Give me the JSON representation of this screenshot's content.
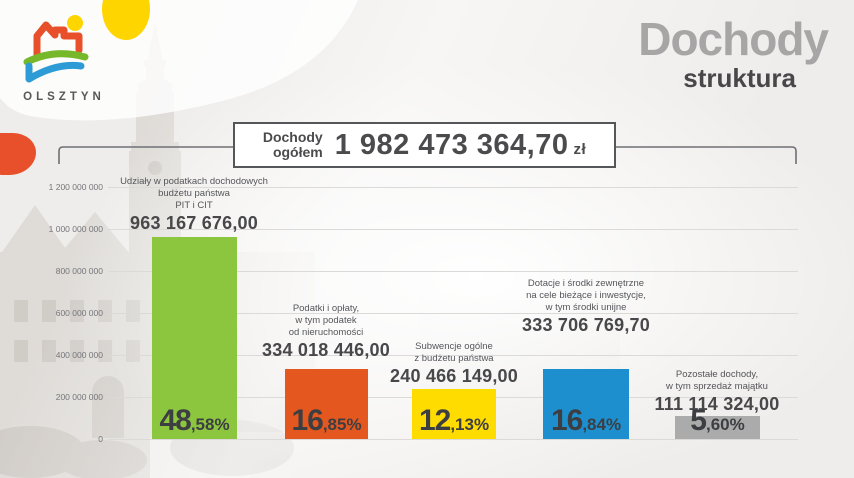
{
  "logo": {
    "city_name": "OLSZTYN"
  },
  "header": {
    "title": "Dochody",
    "subtitle": "struktura"
  },
  "total_box": {
    "label_line1": "Dochody",
    "label_line2": "ogółem",
    "amount": "1 982 473 364,70",
    "currency": "zł"
  },
  "decor_colors": {
    "yellow_blob": "#FFD500",
    "orange_blob": "#E8502B"
  },
  "chart_data": {
    "type": "bar",
    "title": "Dochody — struktura",
    "xlabel": "",
    "ylabel": "",
    "ylim": [
      0,
      1200000000
    ],
    "grid": true,
    "y_tick_labels": [
      "1 200 000 000",
      "1 000 000 000",
      "800 000 000",
      "600 000 000",
      "400 000 000",
      "200 000 000",
      "0"
    ],
    "bars": [
      {
        "lines": [
          "Udziały w podatkach dochodowych",
          "budżetu państwa",
          "PIT i CIT"
        ],
        "value": 963167676.0,
        "value_label": "963 167 676,00",
        "percent": "48,58%",
        "pct_main": "48",
        "pct_rest": ",58%",
        "color": "#8CC63F"
      },
      {
        "lines": [
          "Podatki i opłaty,",
          "w tym podatek",
          "od nieruchomości"
        ],
        "value": 334018446.0,
        "value_label": "334 018 446,00",
        "percent": "16,85%",
        "pct_main": "16",
        "pct_rest": ",85%",
        "color": "#E4571F"
      },
      {
        "lines": [
          "Subwencje ogólne",
          "z budżetu państwa"
        ],
        "value": 240466149.0,
        "value_label": "240 466 149,00",
        "percent": "12,13%",
        "pct_main": "12",
        "pct_rest": ",13%",
        "color": "#FFDC00"
      },
      {
        "lines": [
          "Dotacje i środki zewnętrzne",
          "na cele bieżące i inwestycje,",
          "w tym środki unijne"
        ],
        "value": 333706769.7,
        "value_label": "333 706 769,70",
        "percent": "16,84%",
        "pct_main": "16",
        "pct_rest": ",84%",
        "color": "#1E8FCE"
      },
      {
        "lines": [
          "Pozostałe dochody,",
          "w tym sprzedaż majątku"
        ],
        "value": 111114324.0,
        "value_label": "111 114 324,00",
        "percent": "5,60%",
        "pct_main": "5",
        "pct_rest": ",60%",
        "color": "#ABABAB"
      }
    ]
  }
}
